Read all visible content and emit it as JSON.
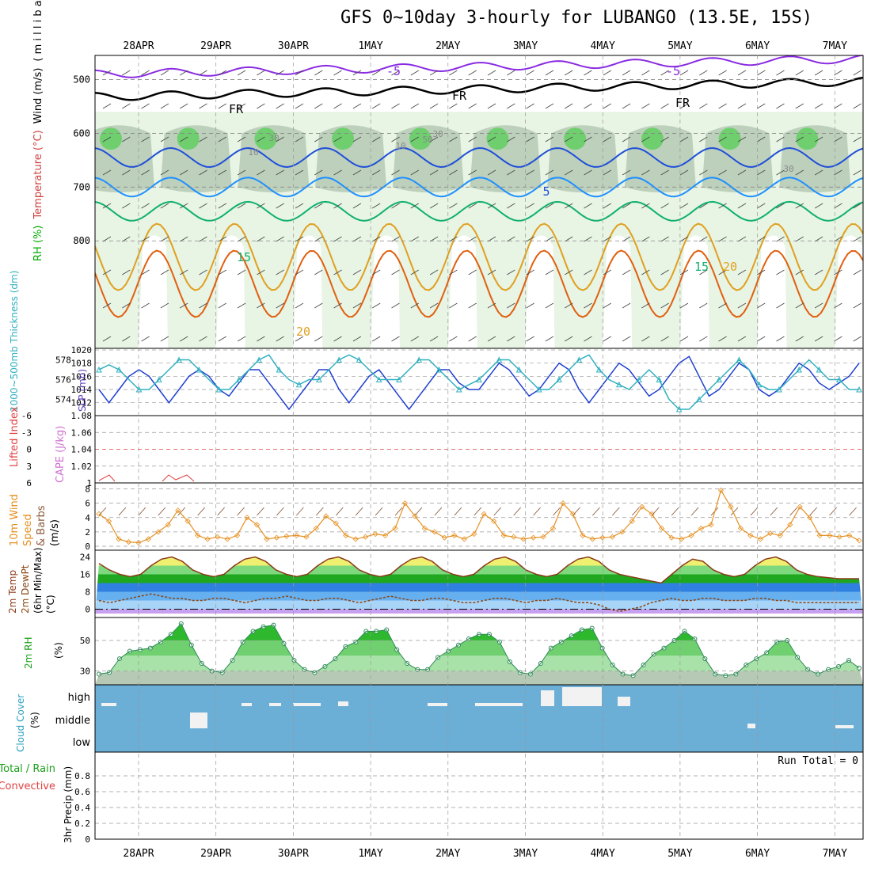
{
  "title": "GFS 0~10day 3-hourly for LUBANGO (13.5E, 15S)",
  "colors": {
    "frame": "#000000",
    "grid": "#999999",
    "cloud": "#6baed6",
    "cloud_gap": "#f2f2f2",
    "sky": "#bcd9ee"
  },
  "chart_data": [
    {
      "type": "line",
      "name": "upper-air cross section",
      "x": [
        "28APR",
        "29APR",
        "30APR",
        "1MAY",
        "2MAY",
        "3MAY",
        "4MAY",
        "5MAY",
        "6MAY",
        "7MAY"
      ],
      "yticks": [
        500,
        600,
        700,
        800
      ],
      "ylim": [
        455,
        1000
      ],
      "ylabel_parts": [
        "RH (%)",
        "Temperature (°C)",
        "Wind (m/s)",
        "( m i l l i b a r s )"
      ],
      "contour_labels": [
        "-5",
        "-5",
        "FR",
        "FR",
        "FR",
        "5",
        "15",
        "15",
        "20",
        "20",
        "10",
        "30",
        "30",
        "50",
        "30",
        "10"
      ],
      "isotherms": [
        {
          "name": "-5",
          "color": "#8a2be2",
          "level": 490
        },
        {
          "name": "FR",
          "color": "#000000",
          "level": 532
        },
        {
          "name": "5",
          "color": "#1f4fd8",
          "level": 645
        },
        {
          "name": "10",
          "color": "#1e90ff",
          "level": 700
        },
        {
          "name": "15",
          "color": "#10b070",
          "level": 745
        },
        {
          "name": "20",
          "color": "#e0a020",
          "level": 830
        },
        {
          "name": "25",
          "color": "#e06010",
          "level": 880
        }
      ]
    },
    {
      "type": "line",
      "name": "SLP and thickness",
      "y_left_ticks": [
        "574",
        "576",
        "578"
      ],
      "y_right_ticks": [
        "1012",
        "1014",
        "1016",
        "1018",
        "1020"
      ],
      "ylabel_left": "1000~500mb Thickness (dm)",
      "ylabel_right": "SLP (mb)",
      "series": [
        {
          "name": "SLP",
          "color": "#1f3fd0",
          "values": [
            1014,
            1012,
            1014,
            1016,
            1017,
            1016,
            1014,
            1012,
            1014,
            1016,
            1017,
            1016,
            1014,
            1013,
            1015,
            1017,
            1017,
            1015,
            1013,
            1011,
            1013,
            1015,
            1017,
            1017,
            1014,
            1012,
            1014,
            1016,
            1017,
            1015,
            1013,
            1011,
            1013,
            1015,
            1017,
            1017,
            1015,
            1014,
            1014,
            1016,
            1018,
            1017,
            1015,
            1013,
            1014,
            1016,
            1018,
            1017,
            1014,
            1012,
            1014,
            1016,
            1018,
            1017,
            1015,
            1013,
            1014,
            1016,
            1018,
            1019,
            1016,
            1013,
            1014,
            1016,
            1018,
            1017,
            1014,
            1013,
            1014,
            1016,
            1018,
            1017,
            1015,
            1014,
            1015,
            1016,
            1018
          ]
        },
        {
          "name": "Thickness",
          "color": "#30b0c0",
          "values": [
            577,
            577.5,
            577,
            576,
            575,
            575,
            576,
            577,
            578,
            578,
            577,
            576,
            575,
            575,
            576,
            577,
            578,
            578.5,
            577,
            576,
            575.5,
            576,
            576,
            577,
            578,
            578.5,
            578,
            577,
            576,
            576,
            576,
            577,
            578,
            578,
            577,
            576,
            575,
            575.5,
            576,
            577,
            578,
            578,
            577,
            576,
            575,
            575,
            576,
            577,
            578,
            578.5,
            577,
            576,
            575.5,
            575,
            576,
            577,
            576,
            574,
            573,
            573,
            574,
            575,
            576,
            577,
            578,
            577,
            575.5,
            575,
            575,
            576,
            577,
            578,
            577,
            576,
            576,
            575,
            575
          ]
        }
      ]
    },
    {
      "type": "line",
      "name": "Lifted Index and CAPE",
      "y_left_ticks": [
        "6",
        "3",
        "0",
        "-3",
        "-6"
      ],
      "y_right_ticks": [
        "1",
        "1.02",
        "1.04",
        "1.06",
        "1.08"
      ],
      "ylabel_left": "Lifted Index",
      "ylabel_right": "CAPE (J/kg)"
    },
    {
      "type": "line",
      "name": "10m wind",
      "yticks": [
        "0",
        "2",
        "4",
        "6",
        "8"
      ],
      "ylim": [
        0,
        8.5
      ],
      "ylabel_parts": [
        "10m Wind",
        "Speed",
        "& Barbs",
        "(m/s)"
      ],
      "series": [
        {
          "name": "Speed",
          "color": "#e69020",
          "values": [
            4.5,
            3.5,
            1,
            0.6,
            0.5,
            1,
            2,
            3,
            5,
            3.5,
            1.5,
            1,
            1.3,
            1,
            1.5,
            4,
            3,
            1,
            1.2,
            1.4,
            1.5,
            1.3,
            2.5,
            4.2,
            3.2,
            1.5,
            1,
            1.3,
            1.7,
            1.5,
            2.5,
            6,
            4.2,
            2.5,
            2,
            1.2,
            1.5,
            1,
            1.7,
            4.5,
            3.5,
            1.5,
            1.3,
            1,
            1.2,
            1.3,
            2.5,
            6,
            4.5,
            1.5,
            1,
            1.2,
            1.3,
            2,
            3.5,
            5.5,
            4.5,
            2.5,
            1.2,
            1,
            1.5,
            2.5,
            3,
            7.8,
            5.5,
            2.5,
            1.5,
            1,
            1.8,
            1.5,
            3,
            5.5,
            4,
            1.5,
            1.5,
            1.3,
            1.5,
            0.8
          ]
        }
      ]
    },
    {
      "type": "area",
      "name": "2m temperature",
      "yticks": [
        "0",
        "8",
        "16",
        "24"
      ],
      "ylim": [
        -2,
        26
      ],
      "ylabel_parts": [
        "2m Temp",
        "2m DewPt",
        "(6hr Min/Max)",
        "(°C)"
      ],
      "series": [
        {
          "name": "Temp",
          "color": "#8b3a1a",
          "values": [
            21,
            18,
            16,
            15,
            16,
            20,
            23,
            24,
            22,
            18,
            16,
            15,
            16,
            20,
            23,
            24,
            22,
            18,
            16,
            15,
            16,
            20,
            23,
            24,
            22,
            18,
            16,
            15,
            16,
            20,
            23,
            24,
            22,
            18,
            16,
            15,
            16,
            20,
            23,
            24,
            22,
            18,
            16,
            15,
            16,
            20,
            23,
            24,
            22,
            18,
            16,
            15,
            14,
            13,
            12,
            16,
            20,
            23,
            22,
            18,
            16,
            15,
            16,
            20,
            23,
            24,
            22,
            18,
            16,
            15,
            14.5,
            14,
            14,
            14
          ]
        },
        {
          "name": "DewPt",
          "color": "#8b4513",
          "values": [
            4,
            3,
            4,
            5,
            6,
            7,
            6,
            5,
            5,
            4,
            4,
            5,
            5,
            4,
            3,
            4,
            5,
            5,
            6,
            5,
            4,
            4,
            5,
            5,
            4,
            3,
            4,
            5,
            6,
            5,
            4,
            4,
            5,
            5,
            4,
            3,
            3,
            4,
            5,
            5,
            4,
            3,
            4,
            4,
            5,
            4,
            3,
            3,
            2,
            0,
            -1,
            0,
            1,
            3,
            4,
            5,
            4,
            4,
            5,
            5,
            4,
            4,
            4,
            5,
            5,
            4,
            4,
            3,
            3,
            3,
            3,
            3,
            3,
            3
          ]
        }
      ]
    },
    {
      "type": "area",
      "name": "2m RH",
      "yticks": [
        "30",
        "50"
      ],
      "ylim": [
        21,
        65
      ],
      "ylabel_parts": [
        "2m RH",
        "(%)"
      ],
      "series": [
        {
          "name": "RH",
          "color": "#2e8b57",
          "values": [
            28,
            29,
            38,
            43,
            44,
            45,
            49,
            54,
            61,
            47,
            35,
            30,
            29,
            37,
            49,
            56,
            59,
            60,
            48,
            37,
            31,
            29,
            33,
            38,
            46,
            49,
            56,
            56,
            57,
            44,
            35,
            31,
            31,
            39,
            43,
            47,
            51,
            54,
            54,
            49,
            36,
            29,
            28,
            35,
            45,
            49,
            53,
            57,
            58,
            45,
            34,
            28,
            27,
            34,
            41,
            45,
            50,
            56,
            51,
            38,
            28,
            27,
            28,
            34,
            38,
            42,
            49,
            50,
            39,
            31,
            28,
            31,
            33,
            37,
            32
          ]
        }
      ]
    },
    {
      "type": "area",
      "name": "Cloud Cover",
      "yticks": [
        "high",
        "middle",
        "low"
      ],
      "ylabel_parts": [
        "Cloud Cover",
        "(%)"
      ]
    },
    {
      "type": "bar",
      "name": "3hr Precip",
      "yticks": [
        "0",
        "0.2",
        "0.4",
        "0.6",
        "0.8"
      ],
      "ylim": [
        0,
        1
      ],
      "ylabel_parts": [
        "Total / Rain",
        "Convective",
        "3hr Precip (mm)"
      ],
      "run_total": "Run Total = 0"
    }
  ]
}
